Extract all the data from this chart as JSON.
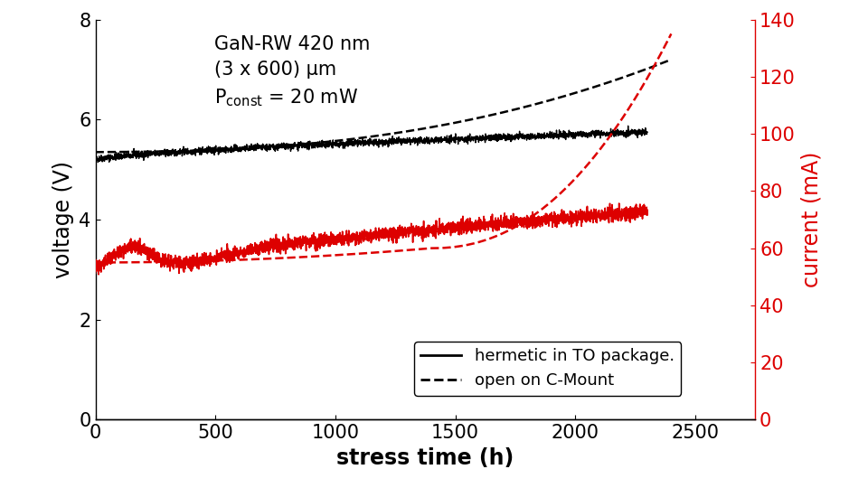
{
  "xlabel": "stress time (h)",
  "ylabel_left": "voltage (V)",
  "ylabel_right": "current (mA)",
  "xlim": [
    0,
    2750
  ],
  "ylim_left": [
    0,
    8
  ],
  "ylim_right": [
    0,
    140
  ],
  "xticks": [
    0,
    500,
    1000,
    1500,
    2000,
    2500
  ],
  "yticks_left": [
    0,
    2,
    4,
    6,
    8
  ],
  "yticks_right": [
    0,
    20,
    40,
    60,
    80,
    100,
    120,
    140
  ],
  "legend_labels": [
    "hermetic in TO package.",
    "open on C-Mount"
  ],
  "background_color": "#ffffff",
  "line_color_black": "#000000",
  "line_color_red": "#dd0000",
  "font_size_labels": 17,
  "font_size_ticks": 15,
  "font_size_annotation": 15,
  "font_size_legend": 13
}
